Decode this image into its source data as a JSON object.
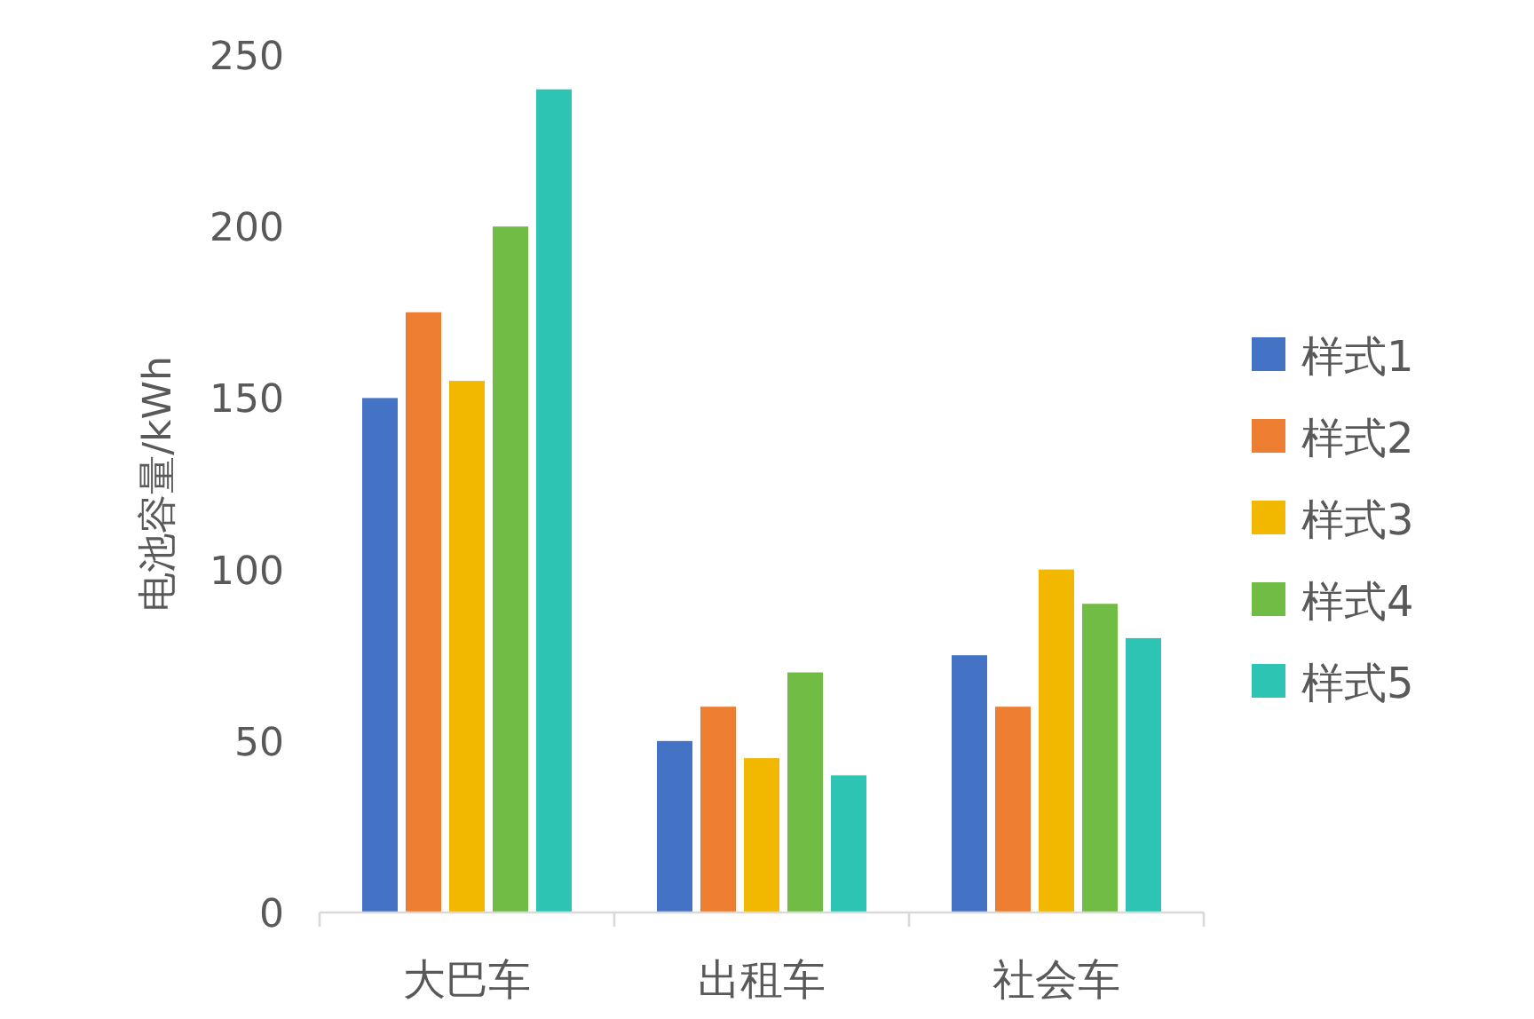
{
  "chart_data": {
    "type": "bar",
    "ylabel": "电池容量/kWh",
    "categories": [
      "大巴车",
      "出租车",
      "社会车"
    ],
    "series": [
      {
        "name": "样式1",
        "color": "#4472c4",
        "values": [
          150,
          50,
          75
        ]
      },
      {
        "name": "样式2",
        "color": "#ed7d31",
        "values": [
          175,
          60,
          60
        ]
      },
      {
        "name": "样式3",
        "color": "#f2b800",
        "values": [
          155,
          45,
          100
        ]
      },
      {
        "name": "样式4",
        "color": "#70bc44",
        "values": [
          200,
          70,
          90
        ]
      },
      {
        "name": "样式5",
        "color": "#2ec4b4",
        "values": [
          240,
          40,
          80
        ]
      }
    ],
    "ylim": [
      0,
      250
    ],
    "yticks": [
      0,
      50,
      100,
      150,
      200,
      250
    ],
    "legend": "right"
  }
}
